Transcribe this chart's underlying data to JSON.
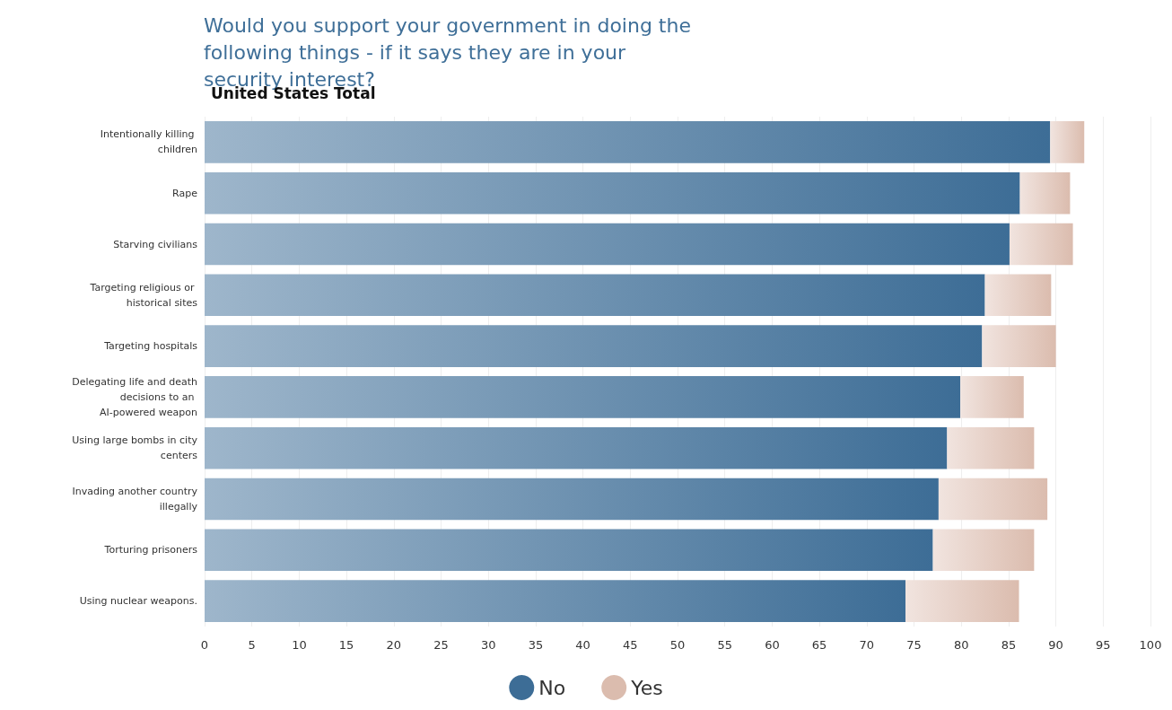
{
  "chart_data": {
    "type": "bar",
    "orientation": "horizontal",
    "stacked": true,
    "title": "Would you support your government in doing the following things - if it says they are in your security interest?",
    "subtitle": "United States Total",
    "categories": [
      "Intentionally killing children",
      "Rape",
      "Starving civilians",
      "Targeting religious or historical sites",
      "Targeting hospitals",
      "Delegating life and death decisions to an AI-powered weapon",
      "Using large bombs in city centers",
      "Invading another country illegally",
      "Torturing prisoners",
      "Using nuclear weapons."
    ],
    "series": [
      {
        "name": "No",
        "color": "#3d6d96",
        "values": [
          89.4,
          86.2,
          85.1,
          82.5,
          82.2,
          79.9,
          78.5,
          77.6,
          77.0,
          74.1
        ]
      },
      {
        "name": "Yes",
        "color": "#dbbcae",
        "values": [
          3.6,
          5.3,
          6.7,
          7.0,
          7.8,
          6.7,
          9.2,
          11.5,
          10.7,
          12.0
        ]
      }
    ],
    "xlim": [
      0,
      100
    ],
    "xticks": [
      0,
      5,
      10,
      15,
      20,
      25,
      30,
      35,
      40,
      45,
      50,
      55,
      60,
      65,
      70,
      75,
      80,
      85,
      90,
      95,
      100
    ],
    "grid": "x",
    "legend": "bottom"
  }
}
